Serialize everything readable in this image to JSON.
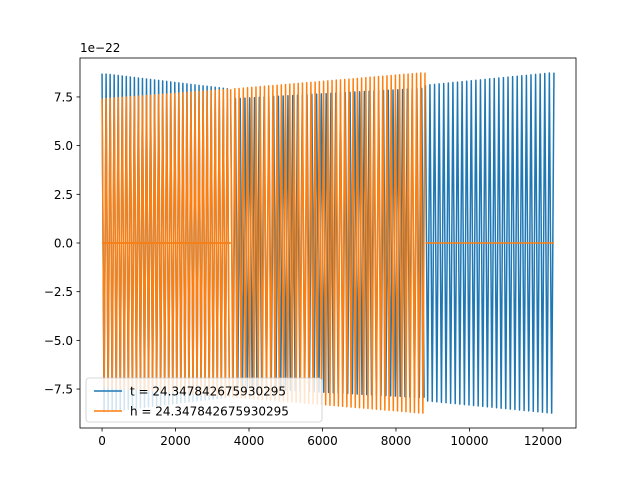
{
  "chart_data": {
    "type": "line",
    "title": "",
    "xlabel": "",
    "ylabel": "",
    "xlim": [
      -600,
      12900
    ],
    "ylim": [
      -9.5,
      9.5
    ],
    "y_offset_label": "1e−22",
    "x_ticks": [
      0,
      2000,
      4000,
      6000,
      8000,
      10000,
      12000
    ],
    "x_tick_labels": [
      "0",
      "2000",
      "4000",
      "6000",
      "8000",
      "10000",
      "12000"
    ],
    "y_ticks": [
      -7.5,
      -5.0,
      -2.5,
      0.0,
      2.5,
      5.0,
      7.5
    ],
    "y_tick_labels": [
      "−7.5",
      "−5.0",
      "−2.5",
      "0.0",
      "2.5",
      "5.0",
      "7.5"
    ],
    "grid": false,
    "legend_position": "lower-left",
    "series": [
      {
        "name": "t = 24.347842675930295",
        "color": "#1f77b4",
        "segments": [
          {
            "kind": "oscillation",
            "x_start": 0,
            "x_end": 3500,
            "amp_start": 8.7,
            "amp_end": 7.9,
            "period": 110
          },
          {
            "kind": "flat",
            "x_start": 0,
            "x_end": 3500,
            "value": 0.0
          },
          {
            "kind": "oscillation",
            "x_start": 3500,
            "x_end": 8800,
            "amp_start": 7.4,
            "amp_end": 7.95,
            "period": 130
          },
          {
            "kind": "oscillation",
            "x_start": 8800,
            "x_end": 12300,
            "amp_start": 8.1,
            "amp_end": 8.75,
            "period": 125
          }
        ]
      },
      {
        "name": "h = 24.347842675930295",
        "color": "#ff7f0e",
        "segments": [
          {
            "kind": "oscillation",
            "x_start": 0,
            "x_end": 3500,
            "amp_start": 7.4,
            "amp_end": 7.9,
            "period": 110
          },
          {
            "kind": "flat",
            "x_start": 0,
            "x_end": 3500,
            "value": 0.0
          },
          {
            "kind": "oscillation",
            "x_start": 3500,
            "x_end": 8800,
            "amp_start": 7.9,
            "amp_end": 8.75,
            "period": 115
          },
          {
            "kind": "flat",
            "x_start": 8800,
            "x_end": 12300,
            "value": 0.0
          }
        ]
      }
    ]
  }
}
